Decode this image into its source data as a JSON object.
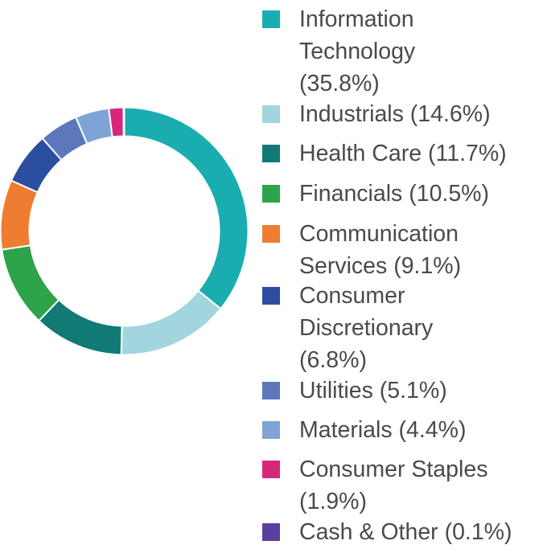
{
  "chart_data": {
    "type": "pie",
    "title": "",
    "series": [
      {
        "label": "Information Technology (35.8%)",
        "value": 35.8,
        "color": "#1aadb0"
      },
      {
        "label": "Industrials (14.6%)",
        "value": 14.6,
        "color": "#a2d5de"
      },
      {
        "label": "Health Care (11.7%)",
        "value": 11.7,
        "color": "#117a74"
      },
      {
        "label": "Financials (10.5%)",
        "value": 10.5,
        "color": "#2ea44a"
      },
      {
        "label": "Communication Services (9.1%)",
        "value": 9.1,
        "color": "#ee7d31"
      },
      {
        "label": "Consumer Discretionary (6.8%)",
        "value": 6.8,
        "color": "#2b4ea1"
      },
      {
        "label": "Utilities (5.1%)",
        "value": 5.1,
        "color": "#5d77bd"
      },
      {
        "label": "Materials (4.4%)",
        "value": 4.4,
        "color": "#7ea4d7"
      },
      {
        "label": "Consumer Staples (1.9%)",
        "value": 1.9,
        "color": "#d6287a"
      },
      {
        "label": "Cash & Other (0.1%)",
        "value": 0.1,
        "color": "#5b3fa0"
      }
    ],
    "legend_position": "right",
    "style": "donut"
  }
}
